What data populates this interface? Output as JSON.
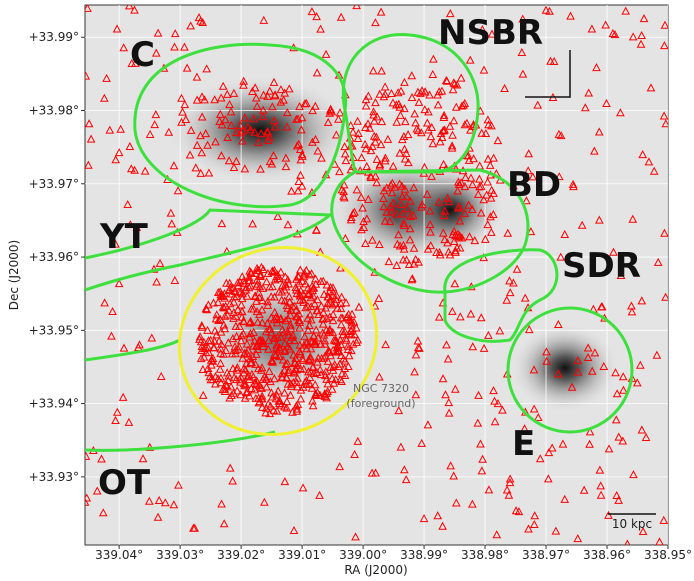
{
  "chart_data": {
    "type": "image",
    "x_label": "RA (J2000)",
    "y_label": "Dec (J2000)",
    "xlim": [
      339.0456,
      338.95
    ],
    "ylim": [
      33.9207,
      33.9944
    ],
    "xticks": [
      {
        "value": 339.04,
        "label": "339.04°"
      },
      {
        "value": 339.03,
        "label": "339.03°"
      },
      {
        "value": 339.02,
        "label": "339.02°"
      },
      {
        "value": 339.01,
        "label": "339.01°"
      },
      {
        "value": 339.0,
        "label": "339.00°"
      },
      {
        "value": 338.99,
        "label": "338.99°"
      },
      {
        "value": 338.98,
        "label": "338.98°"
      },
      {
        "value": 338.97,
        "label": "338.97°"
      },
      {
        "value": 338.96,
        "label": "338.96°"
      },
      {
        "value": 338.95,
        "label": "338.95°"
      }
    ],
    "yticks": [
      {
        "value": 33.93,
        "label": "+33.93°"
      },
      {
        "value": 33.94,
        "label": "+33.94°"
      },
      {
        "value": 33.95,
        "label": "+33.95°"
      },
      {
        "value": 33.96,
        "label": "+33.96°"
      },
      {
        "value": 33.97,
        "label": "+33.97°"
      },
      {
        "value": 33.98,
        "label": "+33.98°"
      },
      {
        "value": 33.99,
        "label": "+33.99°"
      }
    ],
    "grid": true,
    "annotations": {
      "c": "C",
      "nsbr": "NSBR",
      "bd": "BD",
      "yt": "YT",
      "sdr": "SDR",
      "ot": "OT",
      "e": "E",
      "ngc": "NGC 7320",
      "foreground": "(foreground)",
      "scale": "10 kpc"
    }
  }
}
